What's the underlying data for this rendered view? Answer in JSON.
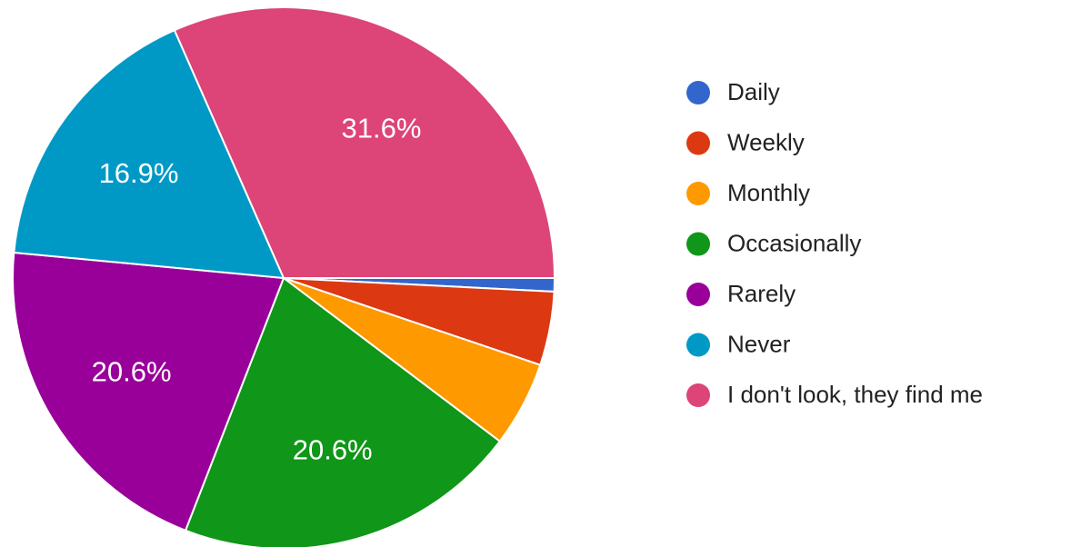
{
  "chart_data": {
    "type": "pie",
    "categories": [
      "Daily",
      "Weekly",
      "Monthly",
      "Occasionally",
      "Rarely",
      "Never",
      "I don't look, they find me"
    ],
    "values": [
      0.8,
      4.4,
      5.1,
      20.6,
      20.6,
      16.9,
      31.6
    ],
    "value_labels": [
      null,
      null,
      null,
      "20.6%",
      "20.6%",
      "16.9%",
      "31.6%"
    ],
    "colors": [
      "#3366cc",
      "#dc3912",
      "#ff9900",
      "#109618",
      "#990099",
      "#0099c6",
      "#dd4477"
    ]
  }
}
